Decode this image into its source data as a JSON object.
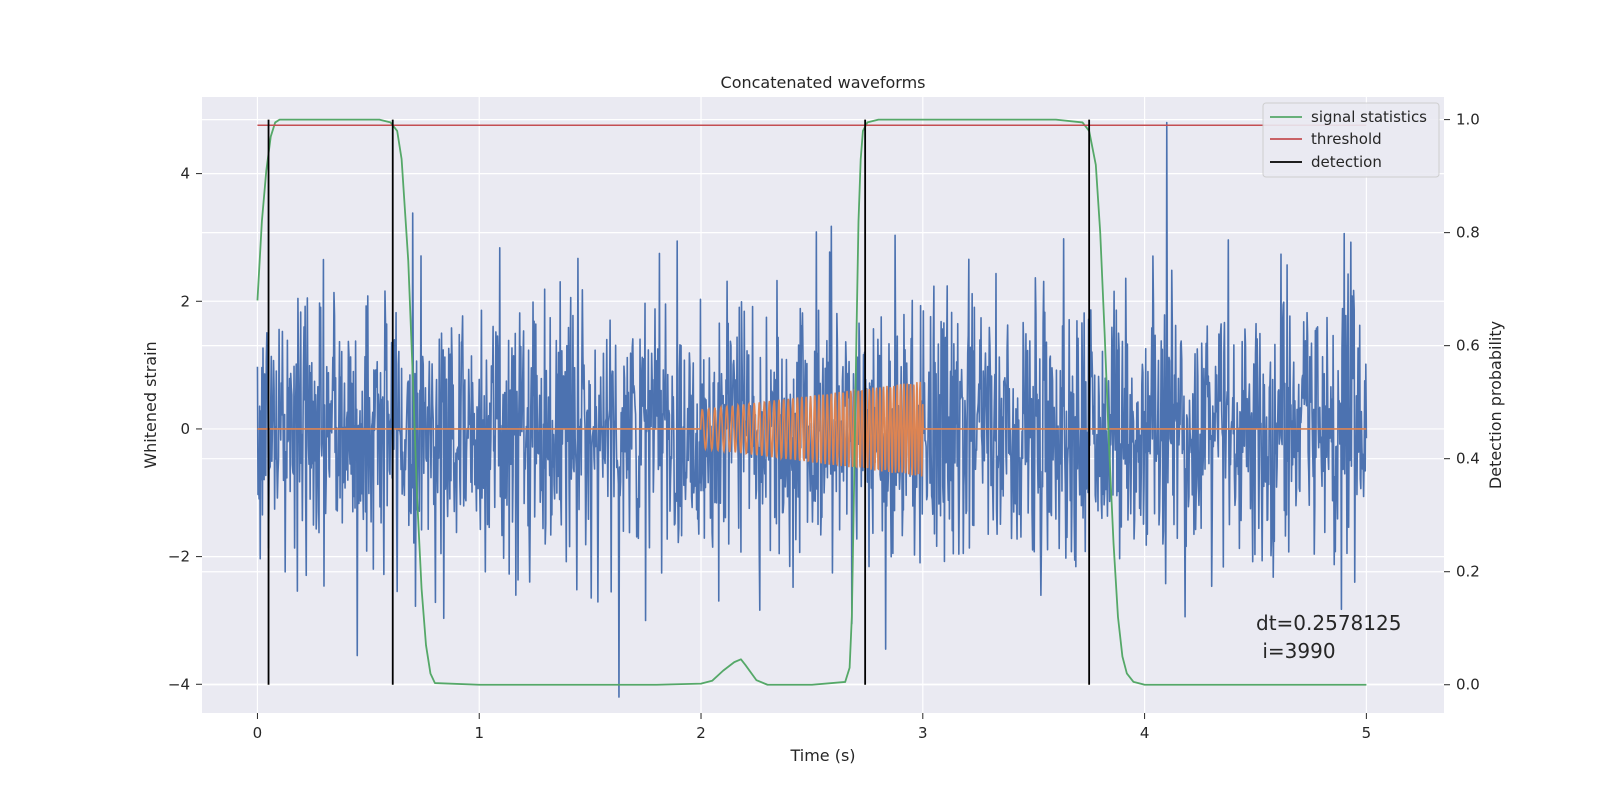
{
  "chart_data": {
    "type": "line",
    "title": "Concatenated waveforms",
    "xlabel": "Time (s)",
    "ylabel": "Whitened strain",
    "y2label": "Detection probability",
    "xlim": [
      -0.25,
      5.35
    ],
    "ylim": [
      -4.45,
      5.2
    ],
    "y2lim": [
      -0.05,
      1.04
    ],
    "x_ticks": [
      0,
      1,
      2,
      3,
      4,
      5
    ],
    "y_ticks": [
      -4,
      -2,
      0,
      2,
      4
    ],
    "y2_ticks": [
      0.0,
      0.2,
      0.4,
      0.6,
      0.8,
      1.0
    ],
    "grid": true,
    "legend_position": "top-right",
    "colors": {
      "strain": "#4c72b0",
      "template": "#dd8452",
      "signal_statistics": "#55a868",
      "threshold": "#c44e52",
      "detection": "#000000"
    },
    "series": [
      {
        "name": "",
        "axis": "left",
        "kind": "noise",
        "x_range": [
          0,
          5
        ],
        "typical_range": [
          -1.0,
          1.0
        ],
        "peak_range": [
          -3.6,
          3.6
        ],
        "spikes": [
          {
            "x": 1.63,
            "y": -4.2
          },
          {
            "x": 4.1,
            "y": 4.8
          },
          {
            "x": 1.75,
            "y": -3.0
          },
          {
            "x": 0.45,
            "y": -3.55
          }
        ]
      },
      {
        "name": "",
        "axis": "left",
        "kind": "chirp",
        "x_range": [
          0,
          5
        ],
        "active_range": [
          2.0,
          3.0
        ],
        "amplitude_start": 0.3,
        "amplitude_end": 0.75
      },
      {
        "name": "signal statistics",
        "axis": "right",
        "x": [
          0,
          0.02,
          0.04,
          0.06,
          0.08,
          0.1,
          0.3,
          0.55,
          0.6,
          0.63,
          0.65,
          0.68,
          0.7,
          0.72,
          0.74,
          0.76,
          0.78,
          0.8,
          1.0,
          1.5,
          1.8,
          2.0,
          2.05,
          2.1,
          2.15,
          2.18,
          2.2,
          2.25,
          2.3,
          2.5,
          2.65,
          2.67,
          2.68,
          2.69,
          2.7,
          2.71,
          2.72,
          2.73,
          2.75,
          2.8,
          3.0,
          3.6,
          3.72,
          3.75,
          3.78,
          3.8,
          3.82,
          3.84,
          3.86,
          3.88,
          3.9,
          3.92,
          3.95,
          4.0,
          4.5,
          5.0
        ],
        "y": [
          0.68,
          0.82,
          0.91,
          0.97,
          0.995,
          1.0,
          1.0,
          1.0,
          0.995,
          0.98,
          0.93,
          0.75,
          0.55,
          0.33,
          0.17,
          0.07,
          0.02,
          0.003,
          0.0,
          0.0,
          0.0,
          0.002,
          0.007,
          0.025,
          0.04,
          0.045,
          0.035,
          0.008,
          0.0,
          0.0,
          0.005,
          0.03,
          0.12,
          0.35,
          0.6,
          0.82,
          0.93,
          0.98,
          0.995,
          1.0,
          1.0,
          1.0,
          0.995,
          0.98,
          0.92,
          0.8,
          0.62,
          0.42,
          0.25,
          0.12,
          0.05,
          0.02,
          0.005,
          0.0,
          0.0,
          0.0
        ]
      },
      {
        "name": "threshold",
        "axis": "right",
        "x": [
          0,
          5
        ],
        "y": [
          0.99,
          0.99
        ]
      },
      {
        "name": "detection",
        "axis": "right",
        "kind": "vlines",
        "x": [
          0.05,
          0.61,
          2.74,
          3.75
        ],
        "ymin": 0.0,
        "ymax": 1.0
      }
    ],
    "annotation": {
      "line1": "dt=0.2578125",
      "line2": " i=3990"
    }
  }
}
